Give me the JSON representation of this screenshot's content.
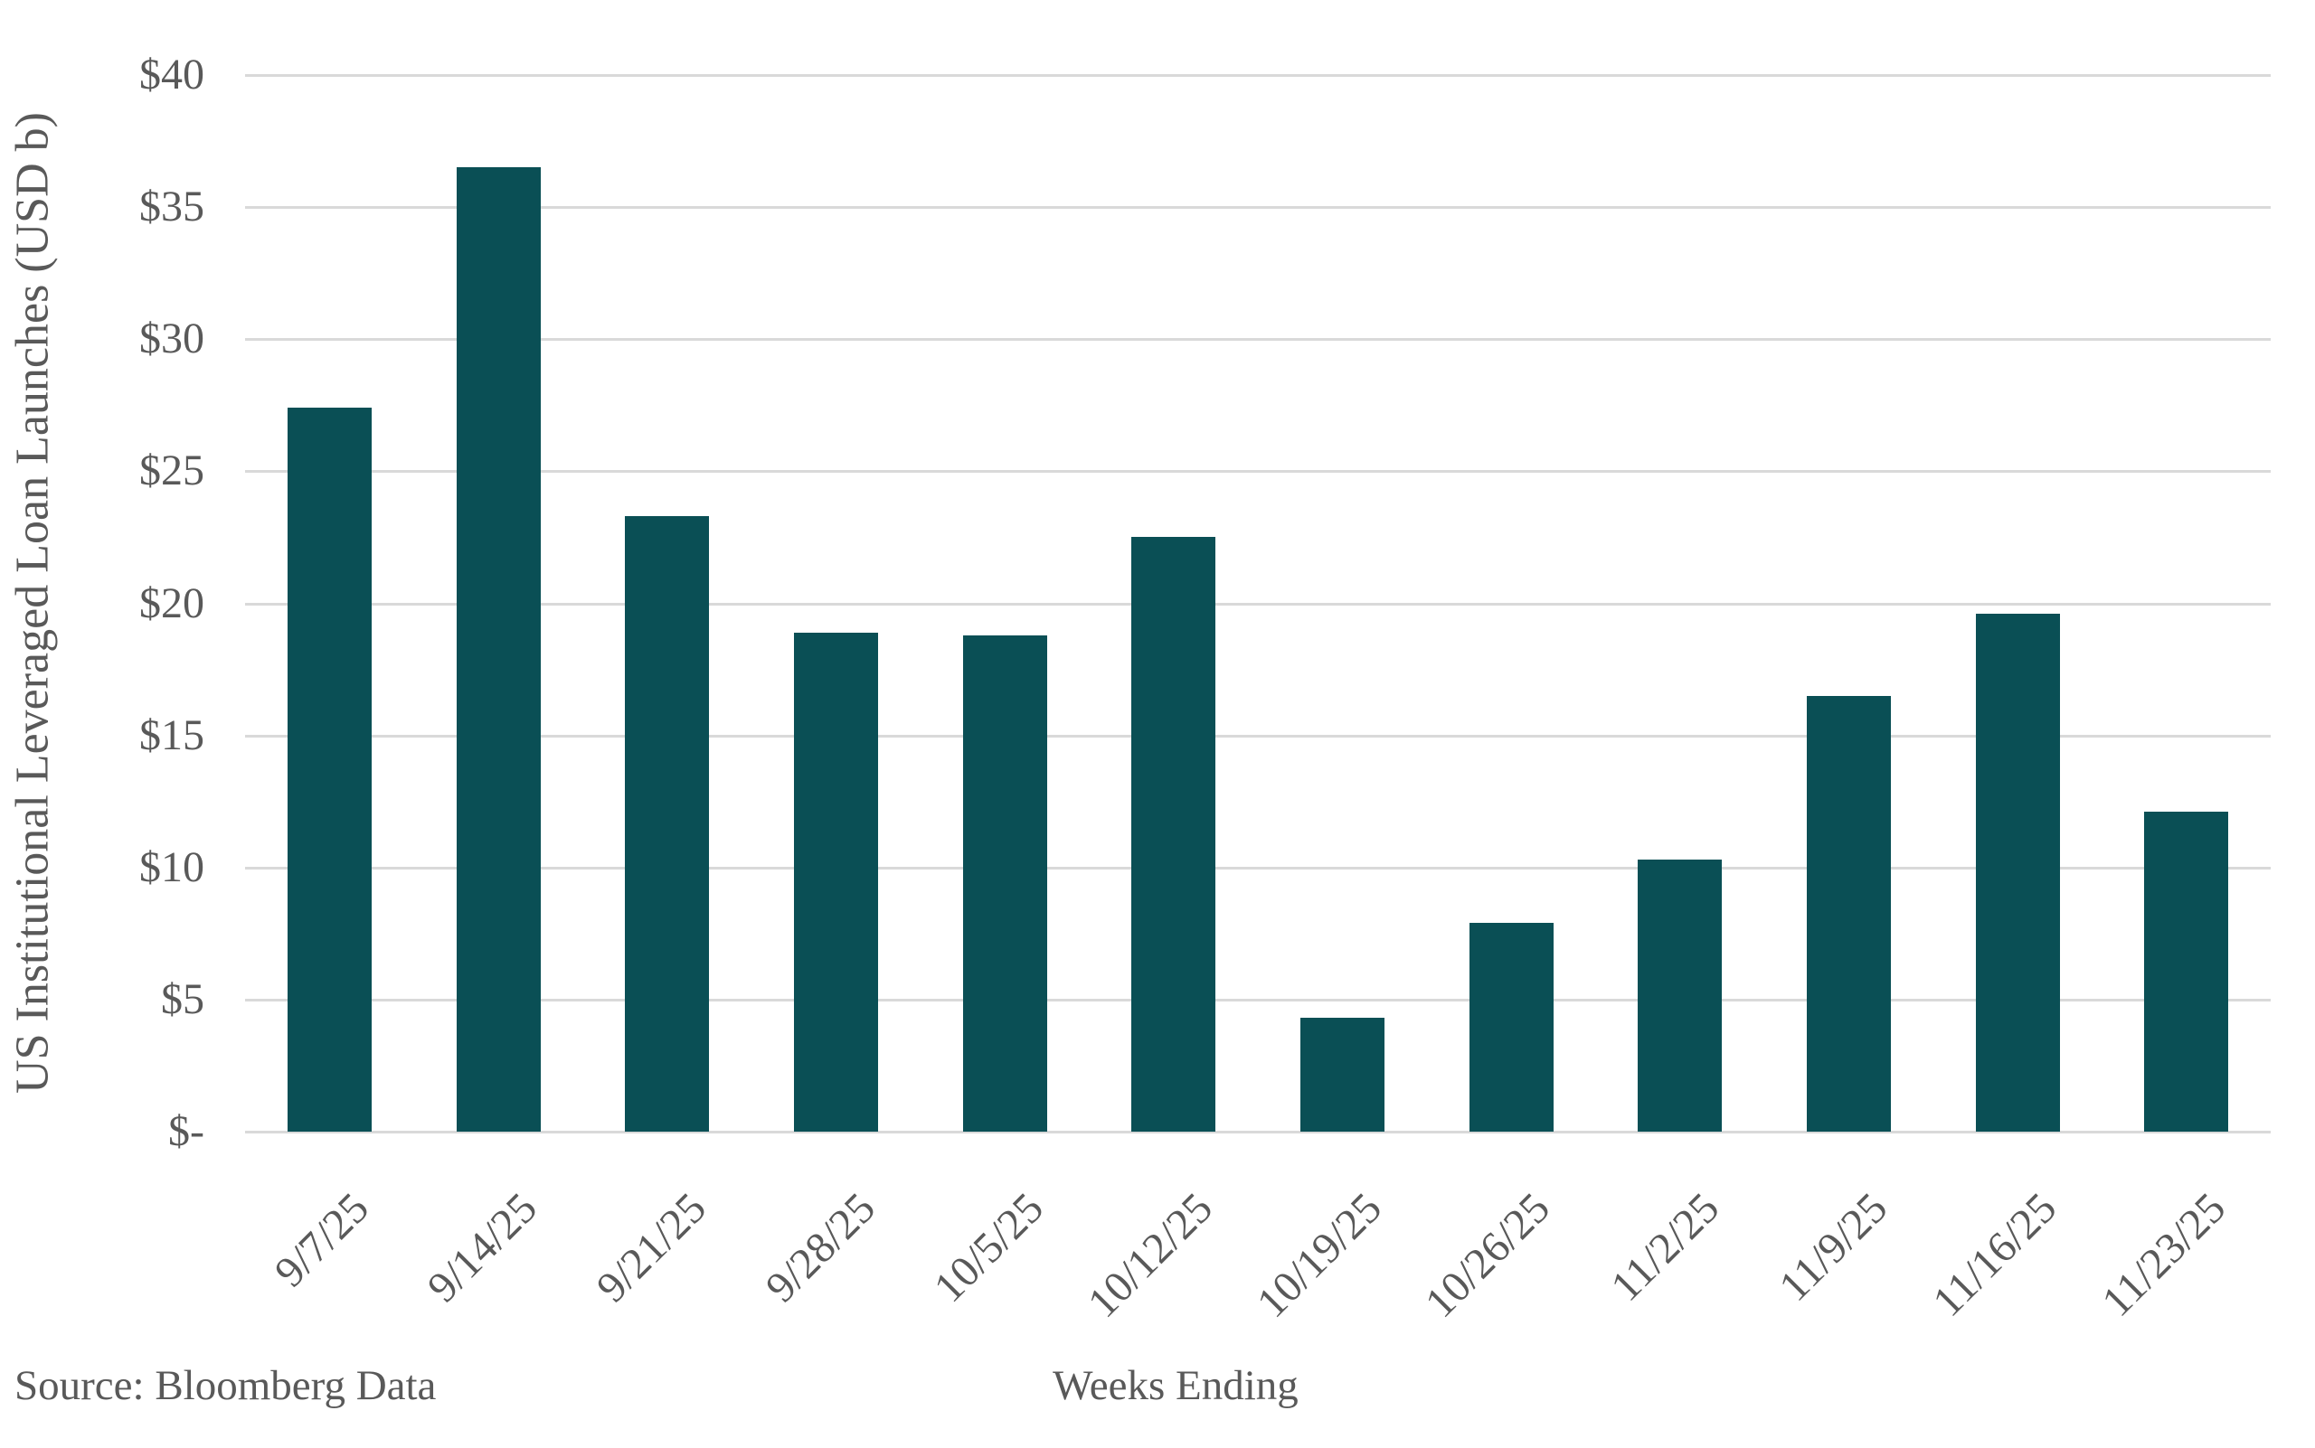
{
  "chart_data": {
    "type": "bar",
    "title": "",
    "xlabel": "Weeks Ending",
    "ylabel": "US Institutional Leveraged Loan Launches (USD b)",
    "source": "Source: Bloomberg Data",
    "categories": [
      "9/7/25",
      "9/14/25",
      "9/21/25",
      "9/28/25",
      "10/5/25",
      "10/12/25",
      "10/19/25",
      "10/26/25",
      "11/2/25",
      "11/9/25",
      "11/16/25",
      "11/23/25"
    ],
    "values": [
      27.4,
      36.5,
      23.3,
      18.9,
      18.8,
      22.5,
      4.3,
      7.9,
      10.3,
      16.5,
      19.6,
      12.1
    ],
    "ylim": [
      0,
      40
    ],
    "ytick_interval": 5,
    "ytick_labels": [
      "$-",
      "$5",
      "$10",
      "$15",
      "$20",
      "$25",
      "$30",
      "$35",
      "$40"
    ],
    "grid": true,
    "legend": false,
    "colors": {
      "bar": "#0a4f55",
      "gridline": "#d9d9d9",
      "text": "#595959",
      "background": "#ffffff"
    }
  }
}
